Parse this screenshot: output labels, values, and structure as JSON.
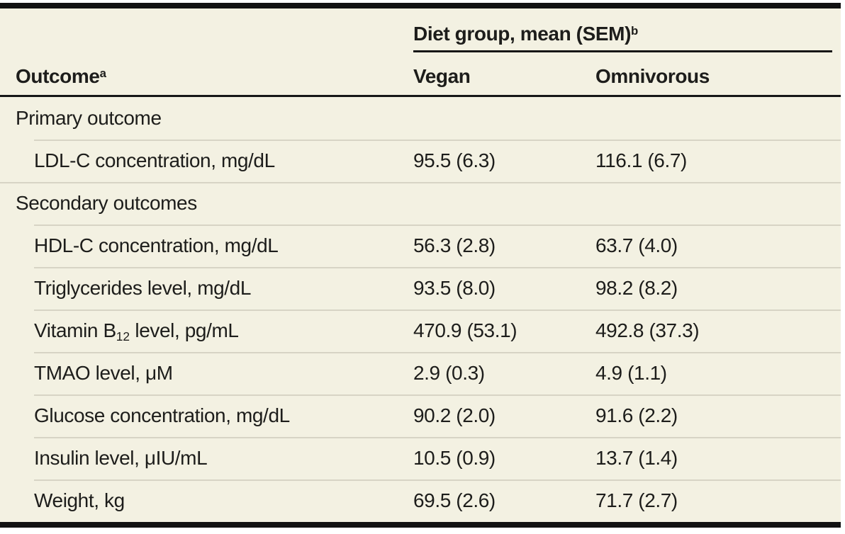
{
  "table": {
    "outcome_header": {
      "text": "Outcome",
      "sup": "a"
    },
    "spanner": {
      "text": "Diet group, mean (SEM)",
      "sup": "b"
    },
    "columns": [
      "Vegan",
      "Omnivorous"
    ],
    "section_labels": [
      "Primary outcome",
      "Secondary outcomes"
    ],
    "rows": [
      {
        "type": "section",
        "label": "Primary outcome",
        "vegan": "",
        "omnivorous": ""
      },
      {
        "type": "item",
        "label": "LDL-C concentration, mg/dL",
        "vegan": "95.5 (6.3)",
        "omnivorous": "116.1 (6.7)"
      },
      {
        "type": "section",
        "label": "Secondary outcomes",
        "vegan": "",
        "omnivorous": ""
      },
      {
        "type": "item",
        "label": "HDL-C concentration, mg/dL",
        "vegan": "56.3 (2.8)",
        "omnivorous": "63.7 (4.0)"
      },
      {
        "type": "item",
        "label": "Triglycerides level, mg/dL",
        "vegan": "93.5 (8.0)",
        "omnivorous": "98.2 (8.2)"
      },
      {
        "type": "item",
        "label_pre": "Vitamin B",
        "label_sub": "12",
        "label_post": " level, pg/mL",
        "vegan": "470.9 (53.1)",
        "omnivorous": "492.8 (37.3)"
      },
      {
        "type": "item",
        "label": "TMAO level, μM",
        "vegan": "2.9 (0.3)",
        "omnivorous": "4.9 (1.1)"
      },
      {
        "type": "item",
        "label": "Glucose concentration, mg/dL",
        "vegan": "90.2 (2.0)",
        "omnivorous": "91.6 (2.2)"
      },
      {
        "type": "item",
        "label": "Insulin level, μIU/mL",
        "vegan": "10.5 (0.9)",
        "omnivorous": "13.7 (1.4)"
      },
      {
        "type": "item",
        "label": "Weight, kg",
        "vegan": "69.5 (2.6)",
        "omnivorous": "71.7 (2.7)"
      }
    ],
    "colors": {
      "background": "#f3f1e2",
      "rule_dark": "#161616",
      "rule_light": "#d7d4c5",
      "text": "#1d1d1b"
    }
  }
}
